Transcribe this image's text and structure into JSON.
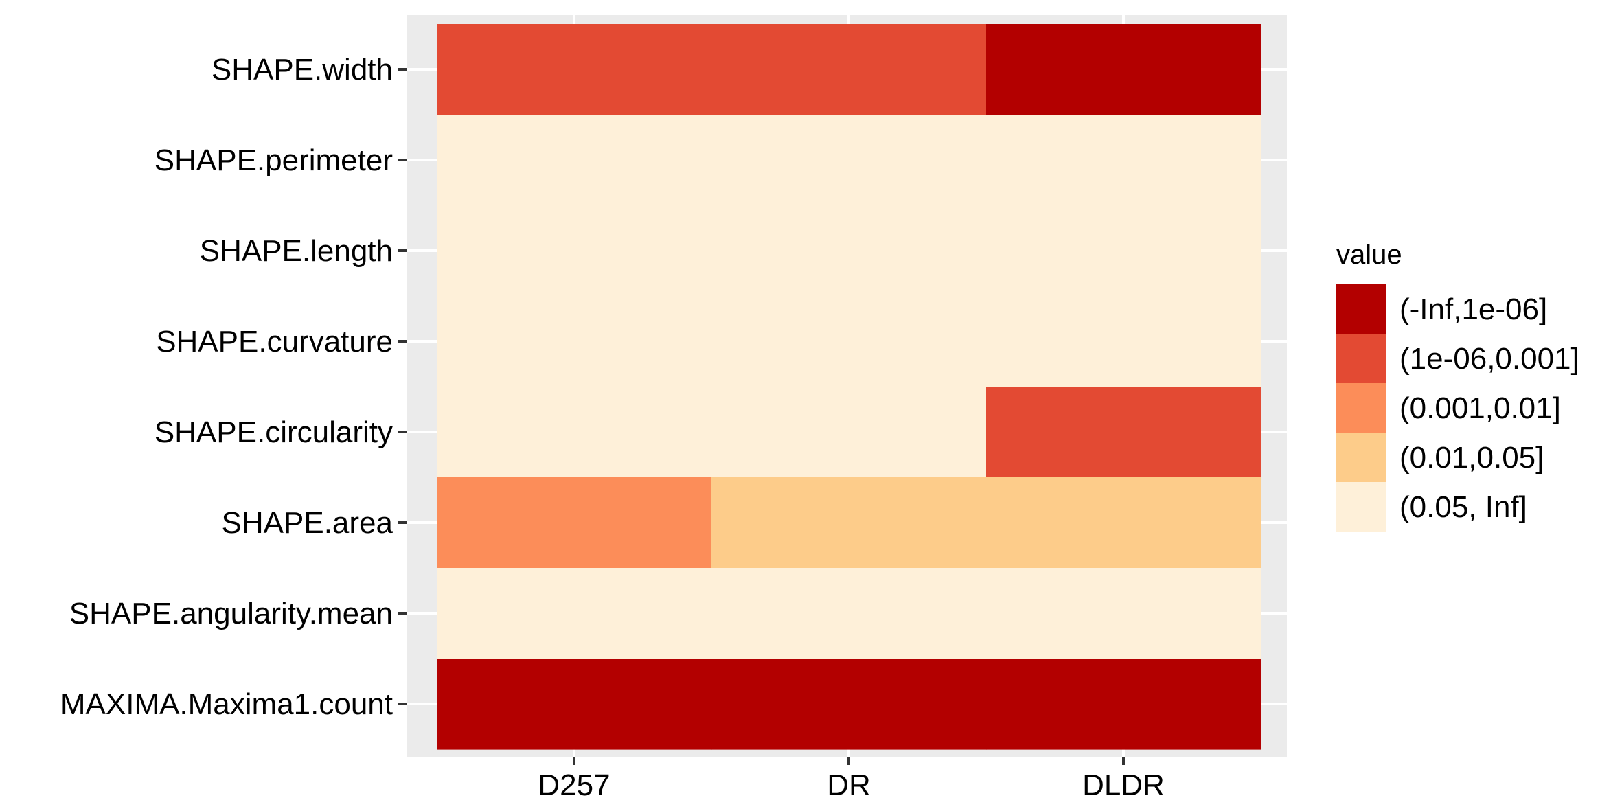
{
  "chart_data": {
    "type": "heatmap",
    "x_categories": [
      "D257",
      "DR",
      "DLDR"
    ],
    "y_categories": [
      "SHAPE.width",
      "SHAPE.perimeter",
      "SHAPE.length",
      "SHAPE.curvature",
      "SHAPE.circularity",
      "SHAPE.area",
      "SHAPE.angularity.mean",
      "MAXIMA.Maxima1.count"
    ],
    "legend": {
      "title": "value",
      "position": "right",
      "bins": [
        {
          "label": "(-Inf,1e-06]",
          "color": "#B30000"
        },
        {
          "label": "(1e-06,0.001]",
          "color": "#E34A33"
        },
        {
          "label": "(0.001,0.01]",
          "color": "#FC8D59"
        },
        {
          "label": "(0.01,0.05]",
          "color": "#FDCC8A"
        },
        {
          "label": "(0.05, Inf]",
          "color": "#FEF0D9"
        }
      ]
    },
    "cells": [
      [
        "(1e-06,0.001]",
        "(1e-06,0.001]",
        "(-Inf,1e-06]"
      ],
      [
        "(0.05, Inf]",
        "(0.05, Inf]",
        "(0.05, Inf]"
      ],
      [
        "(0.05, Inf]",
        "(0.05, Inf]",
        "(0.05, Inf]"
      ],
      [
        "(0.05, Inf]",
        "(0.05, Inf]",
        "(0.05, Inf]"
      ],
      [
        "(0.05, Inf]",
        "(0.05, Inf]",
        "(1e-06,0.001]"
      ],
      [
        "(0.001,0.01]",
        "(0.01,0.05]",
        "(0.01,0.05]"
      ],
      [
        "(0.05, Inf]",
        "(0.05, Inf]",
        "(0.05, Inf]"
      ],
      [
        "(-Inf,1e-06]",
        "(-Inf,1e-06]",
        "(-Inf,1e-06]"
      ]
    ],
    "panel_background": "#EBEBEB",
    "grid_color": "#FFFFFF",
    "grid": true
  }
}
